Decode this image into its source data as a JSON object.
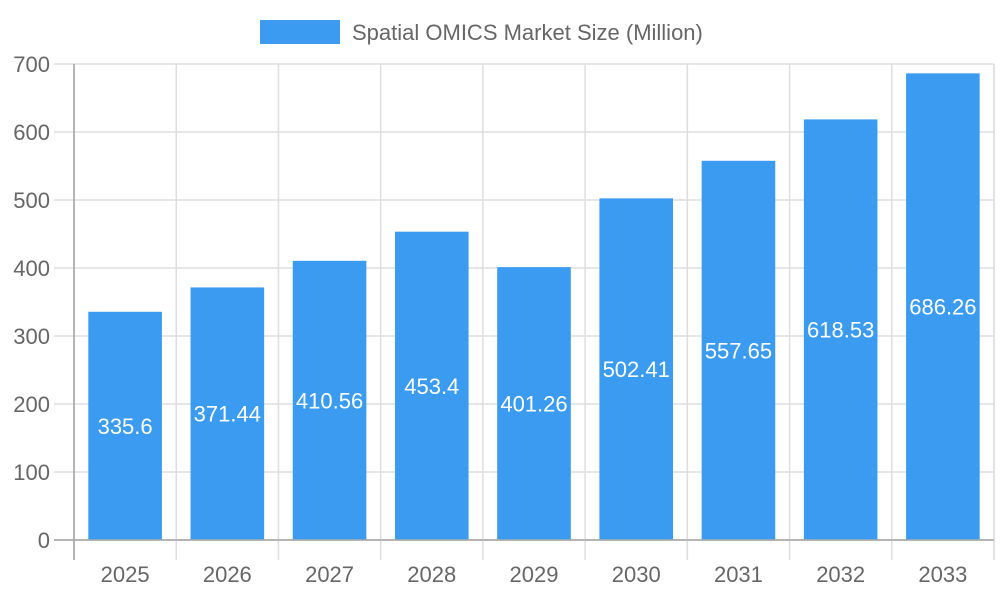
{
  "chart_data": {
    "type": "bar",
    "title": "",
    "xlabel": "",
    "ylabel": "",
    "categories": [
      "2025",
      "2026",
      "2027",
      "2028",
      "2029",
      "2030",
      "2031",
      "2032",
      "2033"
    ],
    "series": [
      {
        "name": "Spatial OMICS Market Size (Million)",
        "values": [
          335.6,
          371.44,
          410.56,
          453.4,
          401.26,
          502.41,
          557.65,
          618.53,
          686.26
        ],
        "color": "#3a9bf0"
      }
    ],
    "ylim": [
      0,
      700
    ],
    "yticks": [
      0,
      100,
      200,
      300,
      400,
      500,
      600,
      700
    ],
    "grid": true,
    "legend": "top-center",
    "data_labels": true
  }
}
